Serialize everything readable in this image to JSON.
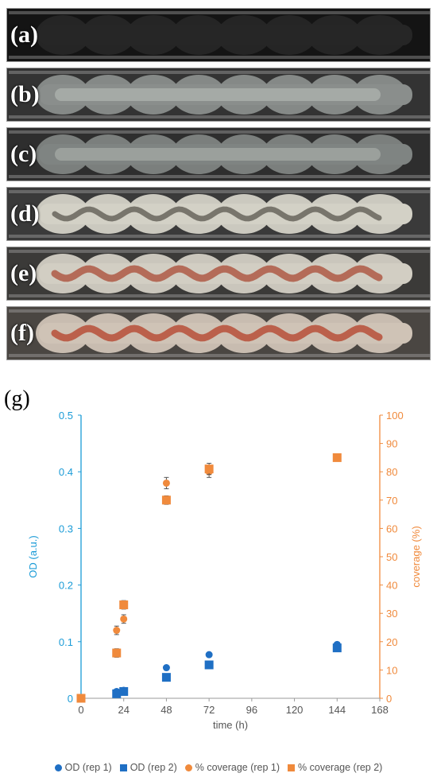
{
  "photo_panels": [
    {
      "label": "(a)",
      "tone": "#141414",
      "channel": "#262626",
      "fill": "#141414"
    },
    {
      "label": "(b)",
      "tone": "#333333",
      "channel": "#8a8e8c",
      "fill": "#b7bcb8"
    },
    {
      "label": "(c)",
      "tone": "#2e2e2e",
      "channel": "#7f8482",
      "fill": "#aeb2ae"
    },
    {
      "label": "(d)",
      "tone": "#3a3a3a",
      "channel": "#d3d1c6",
      "fill": "#6e6a62"
    },
    {
      "label": "(e)",
      "tone": "#3b3a38",
      "channel": "#d2cec3",
      "fill": "#b0604c"
    },
    {
      "label": "(f)",
      "tone": "#4a4642",
      "channel": "#cfc3b6",
      "fill": "#b8553f"
    }
  ],
  "panel_g_label": "(g)",
  "chart_data": {
    "type": "scatter",
    "xlabel": "time (h)",
    "ylabel_left": "OD (a.u.)",
    "ylabel_right": "coverage (%)",
    "xlim": [
      0,
      168
    ],
    "x_ticks": [
      0,
      24,
      48,
      72,
      96,
      120,
      144,
      168
    ],
    "ylim_left": [
      0,
      0.5
    ],
    "y_ticks_left": [
      0,
      0.1,
      0.2,
      0.3,
      0.4,
      0.5
    ],
    "y_tick_labels_left": [
      "0",
      "0.1",
      "0.2",
      "0.3",
      "0.4",
      "0.5"
    ],
    "ylim_right": [
      0,
      100
    ],
    "y_ticks_right": [
      0,
      10,
      20,
      30,
      40,
      50,
      60,
      70,
      80,
      90,
      100
    ],
    "grid": false,
    "legend_position": "bottom",
    "left_axis_color": "#1a9bd7",
    "right_axis_color": "#f08a3c",
    "series": [
      {
        "name": "OD (rep 1)",
        "marker": "circle",
        "axis": "left",
        "color": "#1f6fc4",
        "x": [
          20,
          24,
          48,
          72,
          144
        ],
        "y": [
          0.012,
          0.014,
          0.054,
          0.077,
          0.095
        ],
        "err": [
          0,
          0,
          0,
          0,
          0
        ]
      },
      {
        "name": "OD (rep 2)",
        "marker": "square",
        "axis": "left",
        "color": "#1f6fc4",
        "x": [
          20,
          24,
          48,
          72,
          144
        ],
        "y": [
          0.008,
          0.012,
          0.037,
          0.059,
          0.089
        ],
        "err": [
          0,
          0,
          0,
          0,
          0
        ]
      },
      {
        "name": "% coverage (rep 1)",
        "marker": "circle",
        "axis": "right",
        "color": "#f08a3c",
        "x": [
          0,
          20,
          24,
          48,
          72,
          144
        ],
        "y": [
          0,
          24,
          28,
          76,
          80,
          85
        ],
        "err": [
          0,
          1.5,
          1.5,
          2,
          2,
          1
        ]
      },
      {
        "name": "% coverage (rep 2)",
        "marker": "square",
        "axis": "right",
        "color": "#f08a3c",
        "x": [
          0,
          20,
          24,
          48,
          72,
          144
        ],
        "y": [
          0,
          16,
          33,
          70,
          81,
          85
        ],
        "err": [
          0,
          1.5,
          1.5,
          1.5,
          2,
          1
        ]
      }
    ]
  }
}
